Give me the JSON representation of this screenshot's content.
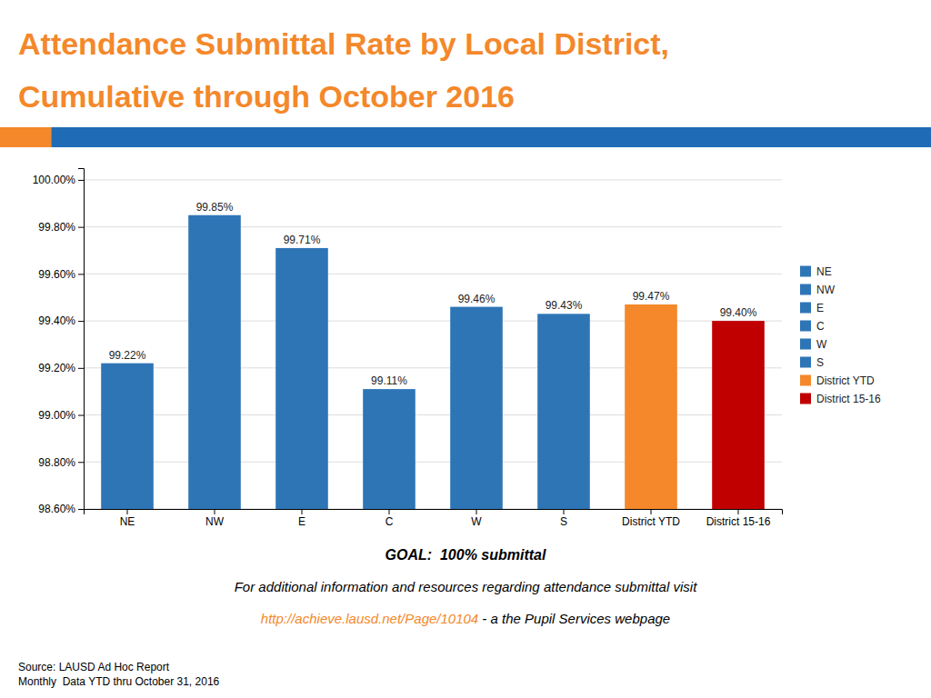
{
  "chart_data": {
    "type": "bar",
    "title": "Attendance Submittal Rate by Local District,",
    "subtitle": "Cumulative through October 2016",
    "categories": [
      "NE",
      "NW",
      "E",
      "C",
      "W",
      "S",
      "District YTD",
      "District 15-16"
    ],
    "values": [
      99.22,
      99.85,
      99.71,
      99.11,
      99.46,
      99.43,
      99.47,
      99.4
    ],
    "value_labels": [
      "99.22%",
      "99.85%",
      "99.71%",
      "99.11%",
      "99.46%",
      "99.43%",
      "99.47%",
      "99.40%"
    ],
    "colors": [
      "#2E75B6",
      "#2E75B6",
      "#2E75B6",
      "#2E75B6",
      "#2E75B6",
      "#2E75B6",
      "#F4882A",
      "#C00000"
    ],
    "data_labels": true,
    "ylim": [
      98.6,
      100.05
    ],
    "yticks": [
      {
        "value": 98.6,
        "label": "98.60%"
      },
      {
        "value": 98.8,
        "label": "98.80%"
      },
      {
        "value": 99.0,
        "label": "99.00%"
      },
      {
        "value": 99.2,
        "label": "99.20%"
      },
      {
        "value": 99.4,
        "label": "99.40%"
      },
      {
        "value": 99.6,
        "label": "99.60%"
      },
      {
        "value": 99.8,
        "label": "99.80%"
      },
      {
        "value": 100.0,
        "label": "100.00%"
      }
    ],
    "grid": true,
    "legend": "right",
    "annotations": [
      {
        "text": "GOAL:  100% submittal"
      },
      {
        "text": "For additional information and resources regarding attendance submittal visit"
      },
      {
        "text": "http://achieve.lausd.net/Page/10104",
        "color": "#F4882A"
      },
      {
        "text": " - a the Pupil Services webpage"
      },
      {
        "text": "Source: LAUSD Ad Hoc Report"
      },
      {
        "text": "Monthly  Data YTD thru October 31, 2016"
      }
    ]
  }
}
